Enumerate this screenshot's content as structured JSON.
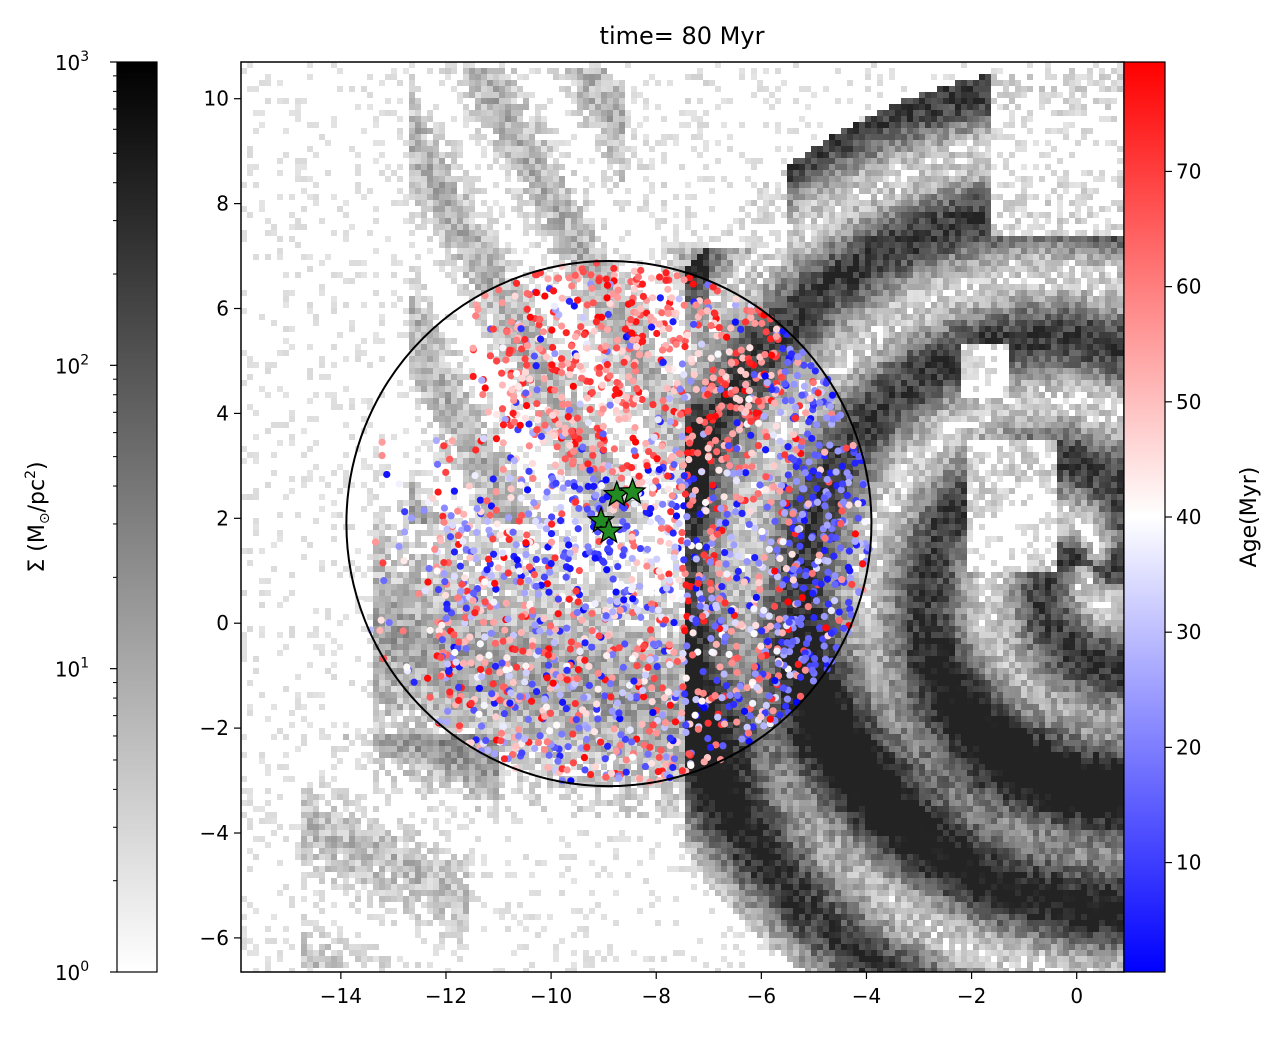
{
  "chart_data": {
    "type": "scatter",
    "title": "time= 80 Myr",
    "xlabel": "",
    "ylabel": "",
    "xlim": [
      -15.9,
      0.9
    ],
    "ylim": [
      -6.65,
      10.7
    ],
    "x_ticks": [
      -14,
      -12,
      -10,
      -8,
      -6,
      -4,
      -2,
      0
    ],
    "y_ticks": [
      -6,
      -4,
      -2,
      0,
      2,
      4,
      6,
      8,
      10
    ],
    "grid": false,
    "background": {
      "type": "heatmap",
      "colormap": "greys",
      "colorbar": {
        "position": "left",
        "scale": "log",
        "range": [
          1,
          1000
        ],
        "label_prefix": "Σ (M",
        "label_sub": "⊙",
        "label_mid": "/pc",
        "label_sup": "2",
        "label_suffix": ")",
        "tick_labels": [
          {
            "base": "10",
            "exp": "0",
            "value": 1
          },
          {
            "base": "10",
            "exp": "1",
            "value": 10
          },
          {
            "base": "10",
            "exp": "2",
            "value": 100
          },
          {
            "base": "10",
            "exp": "3",
            "value": 1000
          }
        ]
      }
    },
    "scatter": {
      "colormap": "bwr",
      "color_by": "age",
      "colorbar": {
        "position": "right",
        "label": "Age(Myr)",
        "range": [
          0.5,
          79.5
        ],
        "ticks": [
          10,
          20,
          30,
          40,
          50,
          60,
          70
        ],
        "colors": [
          "#0000ff",
          "#ffffff",
          "#ff0000"
        ]
      }
    },
    "circle": {
      "center": [
        -8.9,
        1.9
      ],
      "radius": 5.0,
      "color": "#000000"
    },
    "stars": {
      "color": "#228b22",
      "edge_color": "#000000",
      "points": [
        [
          -8.75,
          2.45
        ],
        [
          -8.45,
          2.5
        ],
        [
          -9.05,
          1.95
        ],
        [
          -8.9,
          1.75
        ]
      ]
    }
  }
}
